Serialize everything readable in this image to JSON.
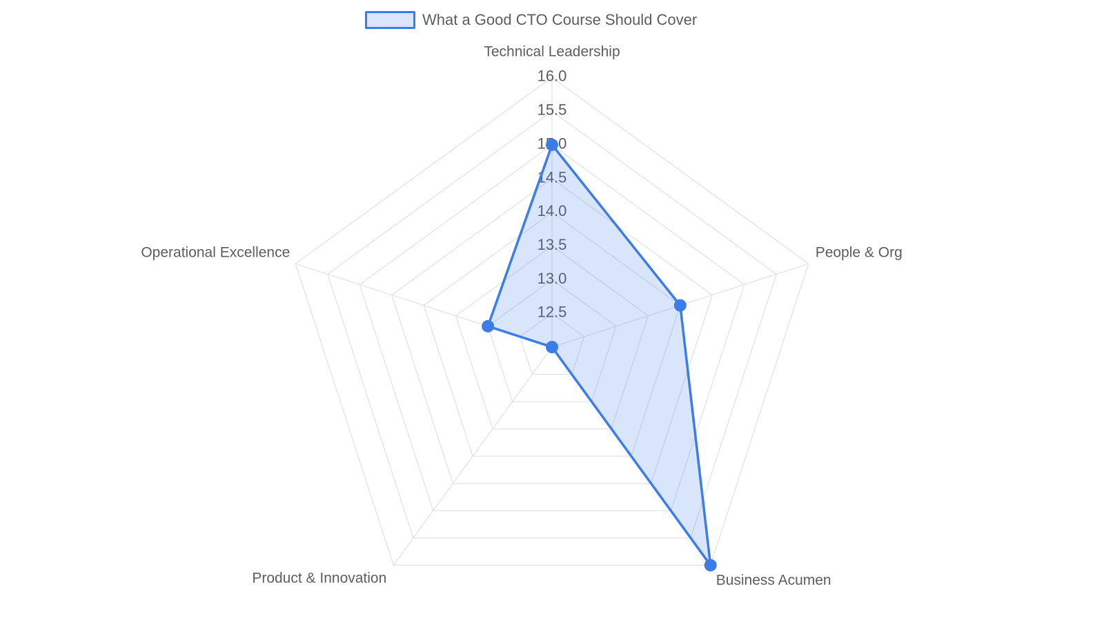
{
  "legend": {
    "label": "What a Good CTO Course Should Cover"
  },
  "chart_data": {
    "type": "radar",
    "title": "What a Good CTO Course Should Cover",
    "categories": [
      "Technical Leadership",
      "People & Org",
      "Business Acumen",
      "Product & Innovation",
      "Operational Excellence"
    ],
    "series": [
      {
        "name": "What a Good CTO Course Should Cover",
        "values": [
          15.0,
          14.0,
          16.0,
          12.0,
          13.0
        ]
      }
    ],
    "radial_range": [
      12.0,
      16.0
    ],
    "tick_values": [
      12.5,
      13.0,
      13.5,
      14.0,
      14.5,
      15.0,
      15.5,
      16.0
    ],
    "tick_labels": [
      "12.5",
      "13.0",
      "13.5",
      "14.0",
      "14.5",
      "15.0",
      "15.5",
      "16.0"
    ],
    "grid_shape": "pentagon",
    "grid_on": true,
    "legend_position": "top-center",
    "colors": {
      "line": "#3C7CE8",
      "fill": "rgba(60,124,232,0.2)",
      "grid": "#E3E3E3",
      "text": "#5A5D61",
      "background": "#FFFFFF"
    }
  }
}
